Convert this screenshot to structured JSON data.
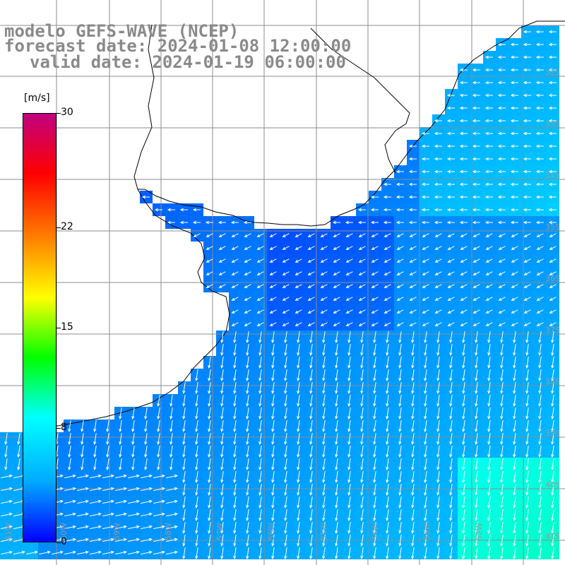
{
  "title": {
    "line1": "modelo GEFS-WAVE (NCEP)",
    "line2": "forecast date: 2024-01-08 12:00:00",
    "line3": "valid date: 2024-01-19 06:00:00"
  },
  "colorbar": {
    "unit": "[m/s]",
    "ticks": [
      "30",
      "22",
      "15",
      "8",
      "0"
    ],
    "tick_values": [
      30,
      22,
      15,
      8,
      0
    ],
    "min": 0,
    "max": 30,
    "colors": [
      "#0000ff",
      "#00aaff",
      "#00ffff",
      "#00ff00",
      "#ffff00",
      "#ff8000",
      "#ff0000",
      "#c00080"
    ]
  },
  "lat_labels": [
    "32S",
    "33S",
    "34S",
    "35S",
    "36S",
    "37S",
    "38S",
    "39S",
    "40S",
    "41S"
  ],
  "lon_labels": [
    "61W",
    "60W",
    "59W",
    "58W",
    "57W",
    "56W",
    "55W",
    "54W",
    "53W",
    "52W"
  ],
  "map": {
    "field": "wind speed",
    "land_color": "#ffffff",
    "grid_color": "#8c8c8c",
    "coast_color": "#000000",
    "arrow_color": "#ffffff"
  }
}
